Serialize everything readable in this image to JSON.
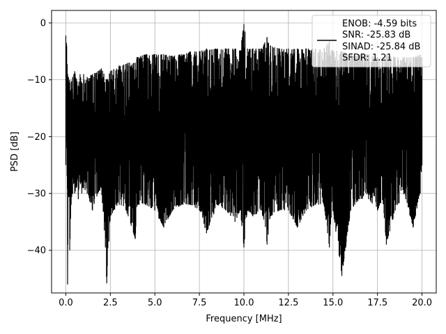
{
  "chart_data": {
    "type": "line",
    "title": "",
    "xlabel": "Frequency [MHz]",
    "ylabel": "PSD [dB]",
    "xlim": [
      -0.8,
      20.8
    ],
    "ylim": [
      -47.5,
      2.2
    ],
    "xticks": [
      0.0,
      2.5,
      5.0,
      7.5,
      10.0,
      12.5,
      15.0,
      17.5,
      20.0
    ],
    "xtick_labels": [
      "0.0",
      "2.5",
      "5.0",
      "7.5",
      "10.0",
      "12.5",
      "15.0",
      "17.5",
      "20.0"
    ],
    "yticks": [
      0,
      -10,
      -20,
      -30,
      -40
    ],
    "ytick_labels": [
      "0",
      "−10",
      "−20",
      "−30",
      "−40"
    ],
    "grid": true,
    "legend_position": "top-right",
    "legend_entries": [
      "ENOB: -4.59 bits",
      "SNR: -25.83 dB",
      "SINAD: -25.84 dB",
      "SFDR: 1.21"
    ],
    "series": [
      {
        "color": "#000000",
        "x": [
          0.0,
          0.05,
          0.1,
          0.15,
          0.22,
          0.3,
          0.38,
          0.45,
          0.5,
          0.6,
          0.7,
          0.8,
          0.9,
          1.0,
          1.2,
          1.5,
          1.8,
          2.0,
          2.3,
          2.5,
          3.0,
          3.5,
          3.9,
          4.0,
          4.5,
          5.0,
          5.5,
          6.0,
          6.5,
          7.0,
          7.5,
          7.9,
          8.5,
          9.0,
          9.5,
          9.8,
          10.0,
          10.2,
          10.5,
          11.0,
          11.3,
          11.5,
          12.0,
          12.5,
          13.0,
          13.5,
          14.0,
          14.5,
          14.8,
          15.0,
          15.5,
          16.0,
          16.5,
          17.0,
          17.5,
          17.8,
          18.0,
          18.5,
          19.0,
          19.5,
          19.9,
          20.0
        ],
        "y_upper": [
          -2.2,
          -4,
          -9,
          -9.5,
          -10,
          -10.5,
          -9.5,
          -9,
          -8.5,
          -10,
          -11,
          -9,
          -10.5,
          -9,
          -9.5,
          -9,
          -8.5,
          -8,
          -10,
          -8.5,
          -7.5,
          -7,
          -7,
          -6,
          -5.5,
          -5.5,
          -5.5,
          -5.8,
          -5.5,
          -5,
          -5,
          -4.5,
          -4.5,
          -4.5,
          -4.5,
          -4.8,
          -0.2,
          -4.5,
          -4.5,
          -4.5,
          -2.5,
          -4,
          -4.5,
          -4.5,
          -4.5,
          -4.5,
          -4.5,
          -4.5,
          -3,
          -4.8,
          -5,
          -5.5,
          -5.5,
          -5.5,
          -6,
          -6,
          -5.5,
          -6,
          -6,
          -6,
          -5.5,
          -6
        ],
        "y_lower": [
          -25,
          -21,
          -46,
          -29,
          -40,
          -32,
          -30,
          -28,
          -30,
          -29,
          -31,
          -28,
          -30,
          -29,
          -30,
          -33,
          -30,
          -29,
          -45.8,
          -34,
          -32,
          -34,
          -38,
          -32,
          -32,
          -33,
          -36,
          -33,
          -32,
          -32,
          -33,
          -37,
          -32,
          -33,
          -35,
          -33,
          -39.5,
          -33,
          -34,
          -33,
          -39,
          -34,
          -33,
          -33,
          -36,
          -33,
          -32,
          -32,
          -39.5,
          -33,
          -44.5,
          -33,
          -31,
          -31,
          -33,
          -31,
          -39,
          -33,
          -30,
          -36,
          -30,
          -25
        ]
      }
    ]
  }
}
